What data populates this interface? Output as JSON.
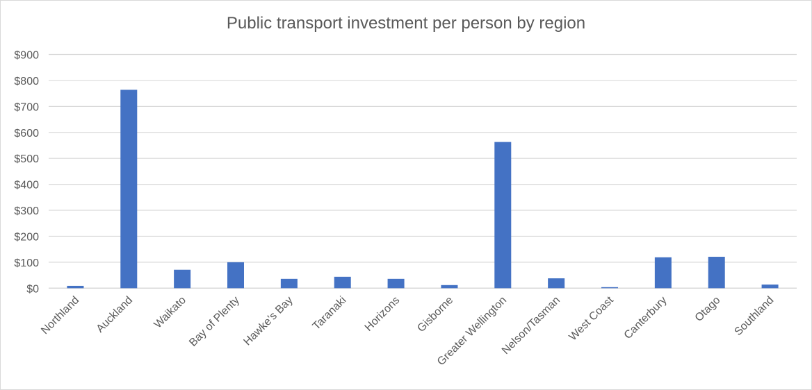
{
  "chart_data": {
    "type": "bar",
    "title": "Public transport investment per person by region",
    "xlabel": "",
    "ylabel": "",
    "ylim": [
      0,
      900
    ],
    "yticks": [
      0,
      100,
      200,
      300,
      400,
      500,
      600,
      700,
      800,
      900
    ],
    "ytick_labels": [
      "$0",
      "$100",
      "$200",
      "$300",
      "$400",
      "$500",
      "$600",
      "$700",
      "$800",
      "$900"
    ],
    "grid": true,
    "legend": "none",
    "categories": [
      "Northland",
      "Auckland",
      "Waikato",
      "Bay of Plenty",
      "Hawke’s Bay",
      "Taranaki",
      "Horizons",
      "Gisborne",
      "Greater Wellington",
      "Nelson/Tasman",
      "West Coast",
      "Canterbury",
      "Otago",
      "Southland"
    ],
    "values": [
      9,
      764,
      71,
      100,
      36,
      44,
      36,
      12,
      563,
      38,
      4,
      119,
      121,
      14
    ],
    "color": "#4472c4"
  }
}
